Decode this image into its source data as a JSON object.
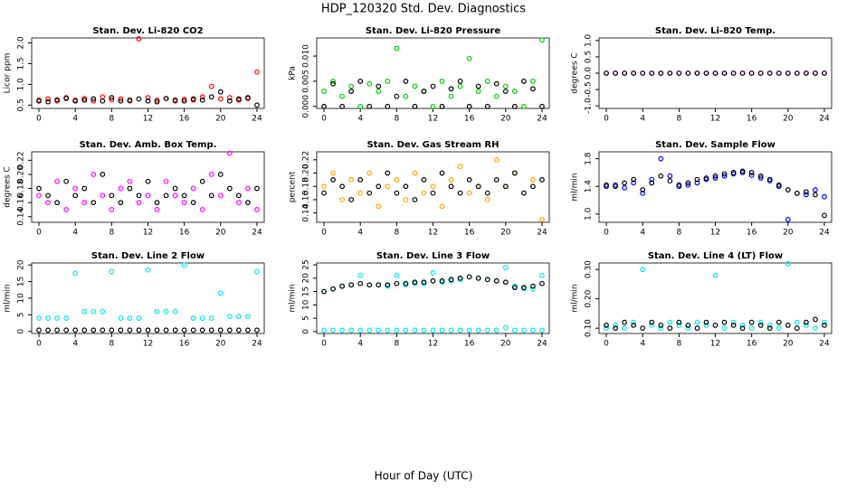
{
  "title": "HDP_120320  Std. Dev. Diagnostics",
  "xlabel": "Hour of Day (UTC)",
  "chart_data": [
    {
      "type": "scatter",
      "title": "Stan. Dev. Li-820 CO2",
      "ylabel": "Licor ppm",
      "x": [
        0,
        1,
        2,
        3,
        4,
        5,
        6,
        7,
        8,
        9,
        10,
        11,
        12,
        13,
        14,
        15,
        16,
        17,
        18,
        19,
        20,
        21,
        22,
        23,
        24
      ],
      "series": [
        {
          "color": "#ff0000",
          "values": [
            0.62,
            0.65,
            0.6,
            0.68,
            0.62,
            0.66,
            0.6,
            0.7,
            0.63,
            0.65,
            0.6,
            2.1,
            0.68,
            0.62,
            0.66,
            0.6,
            0.64,
            0.62,
            0.7,
            0.95,
            0.65,
            0.68,
            0.62,
            0.66,
            1.3
          ]
        },
        {
          "color": "#000000",
          "values": [
            0.6,
            0.58,
            0.63,
            0.66,
            0.6,
            0.62,
            0.65,
            0.6,
            0.68,
            0.6,
            0.62,
            0.65,
            0.6,
            0.58,
            0.66,
            0.62,
            0.6,
            0.65,
            0.62,
            0.7,
            0.82,
            0.6,
            0.65,
            0.68,
            0.5
          ]
        }
      ],
      "xlim": [
        -0.8,
        24.8
      ],
      "xticks": [
        0,
        4,
        8,
        12,
        16,
        20,
        24
      ],
      "ylim": [
        0.42,
        2.12
      ],
      "yticks": [
        0.5,
        {
          "value": 1,
          "label": "1.0"
        },
        1.5,
        {
          "value": 2,
          "label": "2.0"
        }
      ]
    },
    {
      "type": "scatter",
      "title": "Stan. Dev. Li-820 Pressure",
      "ylabel": "kPa",
      "x": [
        0,
        1,
        2,
        3,
        4,
        5,
        6,
        7,
        8,
        9,
        10,
        11,
        12,
        13,
        14,
        15,
        16,
        17,
        18,
        19,
        20,
        21,
        22,
        23,
        24
      ],
      "series": [
        {
          "color": "#00cc00",
          "values": [
            0.003,
            0.005,
            0.002,
            0.004,
            0,
            0.0045,
            0.003,
            0.005,
            0.0115,
            0.002,
            0.004,
            0.003,
            0,
            0.005,
            0.002,
            0.004,
            0.0095,
            0.003,
            0.005,
            0.002,
            0.004,
            0.003,
            0,
            0.005,
            0.0132
          ]
        },
        {
          "color": "#000000",
          "values": [
            0,
            0.0045,
            0,
            0.003,
            0.005,
            0,
            0.004,
            0,
            0.002,
            0.005,
            0,
            0.003,
            0.004,
            0,
            0.0035,
            0.005,
            0,
            0.004,
            0,
            0.0045,
            0.003,
            0,
            0.005,
            0.0035,
            0
          ]
        }
      ],
      "xlim": [
        -0.8,
        24.8
      ],
      "xticks": [
        0,
        4,
        8,
        12,
        16,
        20,
        24
      ],
      "ylim": [
        -0.0004,
        0.0136
      ],
      "yticks": [
        {
          "value": 0,
          "label": "0.000"
        },
        {
          "value": 0.005,
          "label": "0.005"
        },
        {
          "value": 0.01,
          "label": "0.010"
        }
      ]
    },
    {
      "type": "scatter",
      "title": "Stan. Dev. Li-820 Temp.",
      "ylabel": "degrees C",
      "x": [
        0,
        1,
        2,
        3,
        4,
        5,
        6,
        7,
        8,
        9,
        10,
        11,
        12,
        13,
        14,
        15,
        16,
        17,
        18,
        19,
        20,
        21,
        22,
        23,
        24
      ],
      "series": [
        {
          "color": "#ff00ff",
          "values": [
            0,
            0,
            0,
            0,
            0,
            0,
            0,
            0,
            0,
            0,
            0,
            0,
            0,
            0,
            0,
            0,
            0,
            0,
            0,
            0,
            0,
            0,
            0,
            0,
            0
          ]
        },
        {
          "color": "#000000",
          "values": [
            0,
            0,
            0,
            0,
            0,
            0,
            0,
            0,
            0,
            0,
            0,
            0,
            0,
            0,
            0,
            0,
            0,
            0,
            0,
            0,
            0,
            0,
            0,
            0,
            0
          ]
        }
      ],
      "xlim": [
        -0.8,
        24.8
      ],
      "xticks": [
        0,
        4,
        8,
        12,
        16,
        20,
        24
      ],
      "ylim": [
        -1.08,
        1.08
      ],
      "yticks": [
        {
          "value": -1,
          "label": "-1.0"
        },
        -0.5,
        {
          "value": 0,
          "label": "0.0"
        },
        0.5,
        {
          "value": 1,
          "label": "1.0"
        }
      ]
    },
    {
      "type": "scatter",
      "title": "Stan. Dev. Amb. Box Temp.",
      "ylabel": "degrees C",
      "x": [
        0,
        1,
        2,
        3,
        4,
        5,
        6,
        7,
        8,
        9,
        10,
        11,
        12,
        13,
        14,
        15,
        16,
        17,
        18,
        19,
        20,
        21,
        22,
        23,
        24
      ],
      "series": [
        {
          "color": "#ff00ff",
          "values": [
            0.17,
            0.16,
            0.19,
            0.15,
            0.18,
            0.16,
            0.2,
            0.17,
            0.15,
            0.18,
            0.19,
            0.16,
            0.17,
            0.15,
            0.19,
            0.17,
            0.16,
            0.18,
            0.15,
            0.2,
            0.17,
            0.23,
            0.16,
            0.18,
            0.15
          ]
        },
        {
          "color": "#000000",
          "values": [
            0.18,
            0.17,
            0.16,
            0.19,
            0.17,
            0.18,
            0.16,
            0.2,
            0.17,
            0.16,
            0.18,
            0.17,
            0.19,
            0.16,
            0.17,
            0.18,
            0.17,
            0.16,
            0.19,
            0.17,
            0.2,
            0.18,
            0.17,
            0.16,
            0.18
          ]
        }
      ],
      "xlim": [
        -0.8,
        24.8
      ],
      "xticks": [
        0,
        4,
        8,
        12,
        16,
        20,
        24
      ],
      "ylim": [
        0.132,
        0.232
      ],
      "yticks": [
        0.14,
        0.16,
        0.18,
        {
          "value": 0.2,
          "label": "0.20"
        },
        0.22
      ]
    },
    {
      "type": "scatter",
      "title": "Stan. Dev. Gas Stream RH",
      "ylabel": "percent",
      "x": [
        0,
        1,
        2,
        3,
        4,
        5,
        6,
        7,
        8,
        9,
        10,
        11,
        12,
        13,
        14,
        15,
        16,
        17,
        18,
        19,
        20,
        21,
        22,
        23,
        24
      ],
      "series": [
        {
          "color": "#ffa500",
          "values": [
            0.18,
            0.2,
            0.16,
            0.19,
            0.17,
            0.2,
            0.15,
            0.18,
            0.19,
            0.16,
            0.2,
            0.17,
            0.18,
            0.15,
            0.19,
            0.21,
            0.17,
            0.18,
            0.16,
            0.22,
            0.18,
            0.2,
            0.17,
            0.19,
            0.13
          ]
        },
        {
          "color": "#000000",
          "values": [
            0.17,
            0.19,
            0.18,
            0.16,
            0.19,
            0.17,
            0.18,
            0.2,
            0.17,
            0.18,
            0.16,
            0.19,
            0.17,
            0.2,
            0.18,
            0.17,
            0.19,
            0.18,
            0.17,
            0.19,
            0.18,
            0.2,
            0.17,
            0.18,
            0.19
          ]
        }
      ],
      "xlim": [
        -0.8,
        24.8
      ],
      "xticks": [
        0,
        4,
        8,
        12,
        16,
        20,
        24
      ],
      "ylim": [
        0.126,
        0.232
      ],
      "yticks": [
        0.14,
        0.16,
        0.18,
        {
          "value": 0.2,
          "label": "0.20"
        },
        0.22
      ]
    },
    {
      "type": "scatter",
      "title": "Stan. Dev. Sample Flow",
      "ylabel": "ml/min",
      "x": [
        0,
        1,
        2,
        3,
        4,
        5,
        6,
        7,
        8,
        9,
        10,
        11,
        12,
        13,
        14,
        15,
        16,
        17,
        18,
        19,
        20,
        21,
        22,
        23,
        24
      ],
      "series": [
        {
          "color": "#0000ff",
          "values": [
            1.4,
            1.42,
            1.38,
            1.45,
            1.3,
            1.5,
            1.8,
            1.55,
            1.4,
            1.42,
            1.45,
            1.5,
            1.52,
            1.55,
            1.58,
            1.6,
            1.56,
            1.52,
            1.48,
            1.4,
            0.92,
            1.3,
            1.28,
            1.35,
            1.25
          ]
        },
        {
          "color": "#000000",
          "values": [
            1.42,
            1.4,
            1.45,
            1.5,
            1.35,
            1.45,
            1.55,
            1.48,
            1.42,
            1.45,
            1.5,
            1.52,
            1.55,
            1.58,
            1.6,
            1.62,
            1.6,
            1.55,
            1.5,
            1.42,
            1.35,
            1.3,
            1.32,
            1.28,
            0.98
          ]
        }
      ],
      "xlim": [
        -0.8,
        24.8
      ],
      "xticks": [
        0,
        4,
        8,
        12,
        16,
        20,
        24
      ],
      "ylim": [
        0.88,
        1.9
      ],
      "yticks": [
        {
          "value": 1,
          "label": "1.0"
        },
        1.4,
        1.8
      ]
    },
    {
      "type": "scatter",
      "title": "Stan. Dev. Line 2 Flow",
      "ylabel": "ml/min",
      "x": [
        0,
        1,
        2,
        3,
        4,
        5,
        6,
        7,
        8,
        9,
        10,
        11,
        12,
        13,
        14,
        15,
        16,
        17,
        18,
        19,
        20,
        21,
        22,
        23,
        24
      ],
      "series": [
        {
          "color": "#00e5ee",
          "values": [
            4,
            4,
            4,
            4,
            17.5,
            6,
            6,
            6,
            18,
            4,
            4,
            4,
            18.5,
            6,
            6,
            6,
            20,
            4,
            4,
            4,
            11.5,
            4.5,
            4.5,
            4.5,
            18
          ]
        },
        {
          "color": "#000000",
          "values": [
            0.4,
            0.4,
            0.4,
            0.4,
            0.4,
            0.4,
            0.4,
            0.4,
            0.4,
            0.4,
            0.4,
            0.4,
            0.4,
            0.4,
            0.4,
            0.4,
            0.4,
            0.4,
            0.4,
            0.4,
            0.4,
            0.4,
            0.4,
            0.4,
            0.4
          ]
        }
      ],
      "xlim": [
        -0.8,
        24.8
      ],
      "xticks": [
        0,
        4,
        8,
        12,
        16,
        20,
        24
      ],
      "ylim": [
        -0.6,
        20.6
      ],
      "yticks": [
        0,
        5,
        10,
        15,
        20
      ]
    },
    {
      "type": "scatter",
      "title": "Stan. Dev. Line 3 Flow",
      "ylabel": "ml/min",
      "x": [
        0,
        1,
        2,
        3,
        4,
        5,
        6,
        7,
        8,
        9,
        10,
        11,
        12,
        13,
        14,
        15,
        16,
        17,
        18,
        19,
        20,
        21,
        22,
        23,
        24
      ],
      "series": [
        {
          "color": "#00e5ee",
          "values": [
            15,
            16,
            17,
            17.5,
            21,
            17.5,
            17.5,
            17,
            21,
            17.5,
            18,
            18,
            22,
            18.5,
            19,
            19.5,
            20.5,
            20,
            19.5,
            19,
            24,
            17,
            16,
            16,
            21
          ]
        },
        {
          "color": "#00e5ee",
          "values": [
            0.5,
            0.5,
            0.5,
            0.5,
            0.5,
            0.5,
            0.5,
            0.5,
            0.5,
            0.5,
            0.5,
            0.5,
            0.5,
            0.5,
            0.5,
            0.5,
            0.5,
            0.5,
            0.5,
            0.5,
            1.5,
            0.5,
            0.5,
            0.5,
            0.5
          ]
        },
        {
          "color": "#000000",
          "values": [
            15,
            16,
            17,
            17.5,
            18,
            17.5,
            17.5,
            17.5,
            18,
            18,
            18.5,
            18.5,
            19,
            19,
            19.5,
            20,
            20.5,
            20,
            19.5,
            19,
            18.5,
            16.5,
            16.5,
            17,
            18
          ]
        }
      ],
      "xlim": [
        -0.8,
        24.8
      ],
      "xticks": [
        0,
        4,
        8,
        12,
        16,
        20,
        24
      ],
      "ylim": [
        -0.7,
        25.7
      ],
      "yticks": [
        0,
        5,
        10,
        15,
        20,
        25
      ]
    },
    {
      "type": "scatter",
      "title": "Stan. Dev. Line 4 (LT) Flow",
      "ylabel": "ml/min",
      "x": [
        0,
        1,
        2,
        3,
        4,
        5,
        6,
        7,
        8,
        9,
        10,
        11,
        12,
        13,
        14,
        15,
        16,
        17,
        18,
        19,
        20,
        21,
        22,
        23,
        24
      ],
      "series": [
        {
          "color": "#00e5ee",
          "values": [
            0.1,
            0.11,
            0.1,
            0.12,
            0.3,
            0.11,
            0.1,
            0.12,
            0.11,
            0.1,
            0.12,
            0.11,
            0.28,
            0.1,
            0.12,
            0.11,
            0.1,
            0.12,
            0.11,
            0.1,
            0.32,
            0.12,
            0.11,
            0.1,
            0.12
          ]
        },
        {
          "color": "#000000",
          "values": [
            0.11,
            0.1,
            0.12,
            0.11,
            0.1,
            0.12,
            0.11,
            0.1,
            0.12,
            0.11,
            0.1,
            0.12,
            0.11,
            0.12,
            0.11,
            0.1,
            0.12,
            0.11,
            0.1,
            0.12,
            0.11,
            0.1,
            0.12,
            0.13,
            0.11
          ]
        }
      ],
      "xlim": [
        -0.8,
        24.8
      ],
      "xticks": [
        0,
        4,
        8,
        12,
        16,
        20,
        24
      ],
      "ylim": [
        0.082,
        0.322
      ],
      "yticks": [
        {
          "value": 0.1,
          "label": "0.10"
        },
        {
          "value": 0.2,
          "label": "0.20"
        },
        {
          "value": 0.3,
          "label": "0.30"
        }
      ]
    }
  ]
}
